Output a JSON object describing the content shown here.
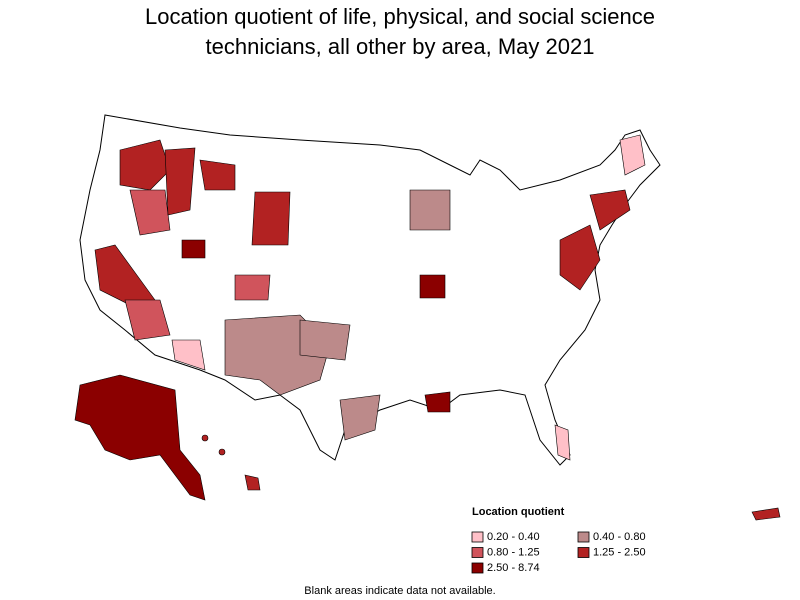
{
  "title": "Location quotient of life, physical, and social science technicians, all other by area, May 2021",
  "legend": {
    "title": "Location quotient",
    "items": [
      {
        "label": "0.20 - 0.40",
        "color": "#ffc0c8"
      },
      {
        "label": "0.40 - 0.80",
        "color": "#bc8a8a"
      },
      {
        "label": "0.80 - 1.25",
        "color": "#d0545c"
      },
      {
        "label": "1.25 - 2.50",
        "color": "#b22222"
      },
      {
        "label": "2.50 - 8.74",
        "color": "#8b0000"
      }
    ]
  },
  "note": "Blank areas indicate data not available."
}
